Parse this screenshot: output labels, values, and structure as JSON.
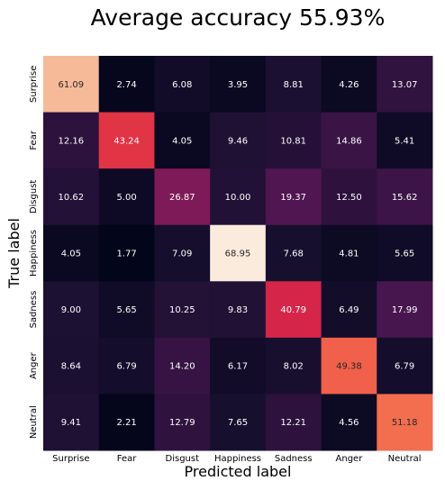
{
  "chart_data": {
    "type": "heatmap",
    "title": "Average accuracy 55.93%",
    "xlabel": "Predicted label",
    "ylabel": "True label",
    "x_categories": [
      "Surprise",
      "Fear",
      "Disgust",
      "Happiness",
      "Sadness",
      "Anger",
      "Neutral"
    ],
    "y_categories": [
      "Surprise",
      "Fear",
      "Disgust",
      "Happiness",
      "Sadness",
      "Anger",
      "Neutral"
    ],
    "values": [
      [
        61.09,
        2.74,
        6.08,
        3.95,
        8.81,
        4.26,
        13.07
      ],
      [
        12.16,
        43.24,
        4.05,
        9.46,
        10.81,
        14.86,
        5.41
      ],
      [
        10.62,
        5.0,
        26.87,
        10.0,
        19.37,
        12.5,
        15.62
      ],
      [
        4.05,
        1.77,
        7.09,
        68.95,
        7.68,
        4.81,
        5.65
      ],
      [
        9.0,
        5.65,
        10.25,
        9.83,
        40.79,
        6.49,
        17.99
      ],
      [
        8.64,
        6.79,
        14.2,
        6.17,
        8.02,
        49.38,
        6.79
      ],
      [
        9.41,
        2.21,
        12.79,
        7.65,
        12.21,
        4.56,
        51.18
      ]
    ],
    "value_labels": [
      [
        "61.09",
        "2.74",
        "6.08",
        "3.95",
        "8.81",
        "4.26",
        "13.07"
      ],
      [
        "12.16",
        "43.24",
        "4.05",
        "9.46",
        "10.81",
        "14.86",
        "5.41"
      ],
      [
        "10.62",
        "5.00",
        "26.87",
        "10.00",
        "19.37",
        "12.50",
        "15.62"
      ],
      [
        "4.05",
        "1.77",
        "7.09",
        "68.95",
        "7.68",
        "4.81",
        "5.65"
      ],
      [
        "9.00",
        "5.65",
        "10.25",
        "9.83",
        "40.79",
        "6.49",
        "17.99"
      ],
      [
        "8.64",
        "6.79",
        "14.20",
        "6.17",
        "8.02",
        "49.38",
        "6.79"
      ],
      [
        "9.41",
        "2.21",
        "12.79",
        "7.65",
        "12.21",
        "4.56",
        "51.18"
      ]
    ],
    "colormap": "rocket",
    "vmin": 1.77,
    "vmax": 68.95,
    "grid": false,
    "legend": "none"
  }
}
